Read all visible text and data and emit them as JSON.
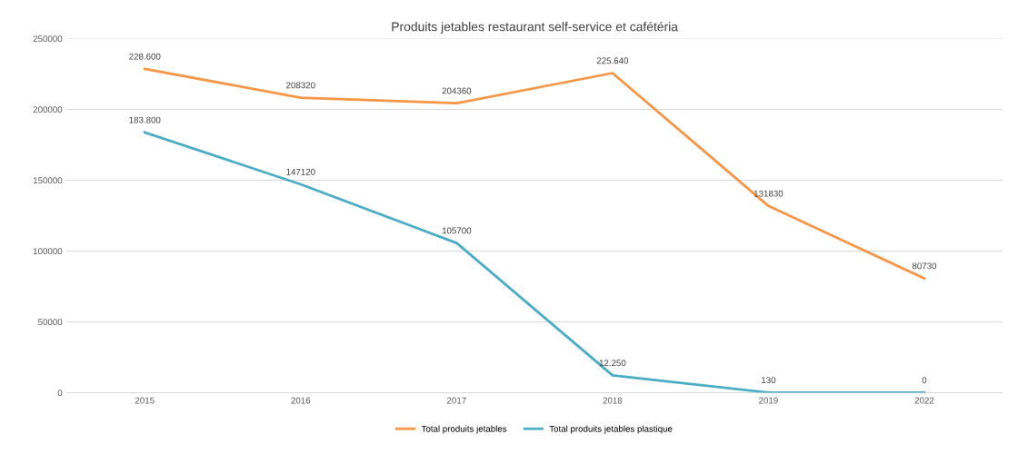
{
  "chart_data": {
    "type": "line",
    "title": "Produits jetables restaurant self-service et cafétéria",
    "categories": [
      "2015",
      "2016",
      "2017",
      "2018",
      "2019",
      "2022"
    ],
    "series": [
      {
        "name": "Total produits jetables",
        "color": "#f79646",
        "values": [
          228600,
          208320,
          204360,
          225640,
          131830,
          80730
        ],
        "value_labels": [
          "228.600",
          "208320",
          "204360",
          "225.640",
          "131830",
          "80730"
        ]
      },
      {
        "name": "Total produits jetables plastique",
        "color": "#4bacc6",
        "values": [
          183800,
          147120,
          105700,
          12250,
          130,
          0
        ],
        "value_labels": [
          "183.800",
          "147120",
          "105700",
          "12.250",
          "130",
          "0"
        ]
      }
    ],
    "ylim": [
      0,
      250000
    ],
    "yticks": [
      0,
      50000,
      100000,
      150000,
      200000,
      250000
    ],
    "grid": "y",
    "legend": "bottom",
    "marker": "none",
    "line_style": "solid"
  }
}
